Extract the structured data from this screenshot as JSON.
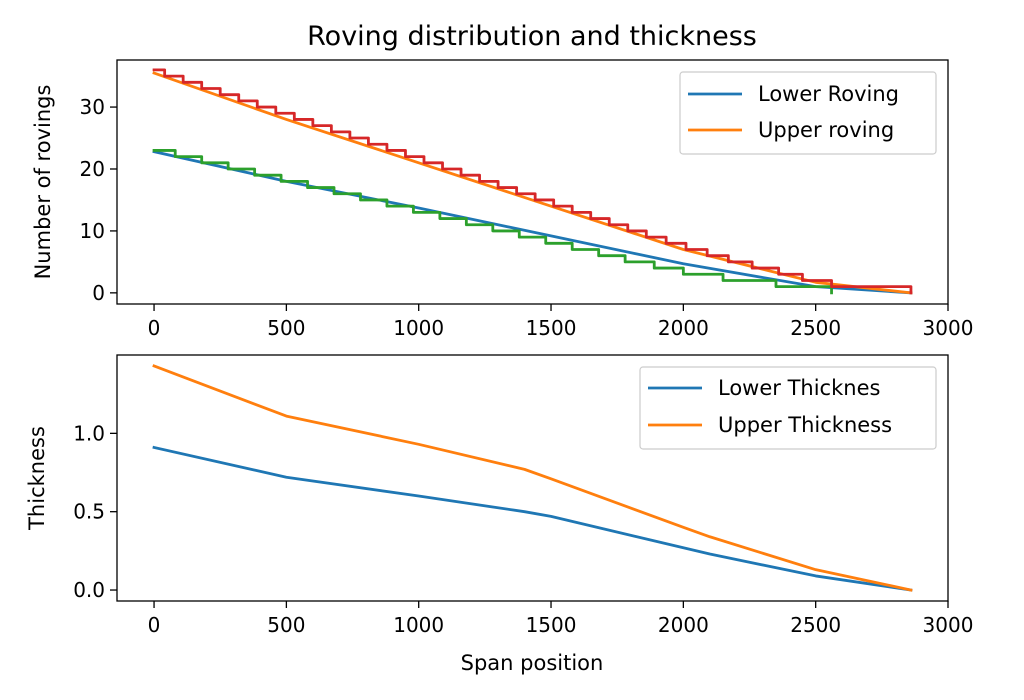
{
  "chart_data": [
    {
      "type": "line",
      "title": "Roving distribution and thickness",
      "xlabel": "",
      "ylabel": "Number of rovings",
      "xlim": [
        -140,
        3000
      ],
      "ylim": [
        -1.8,
        37.6
      ],
      "xticks": [
        0,
        500,
        1000,
        1500,
        2000,
        2500,
        3000
      ],
      "yticks": [
        0,
        10,
        20,
        30
      ],
      "legend": "top-right",
      "series": [
        {
          "name": "Lower Roving",
          "color": "#1f77b4",
          "style": "line",
          "x": [
            0,
            500,
            1000,
            1500,
            2000,
            2500,
            2860
          ],
          "y": [
            22.8,
            18.0,
            13.7,
            9.2,
            4.7,
            1.0,
            0.0
          ]
        },
        {
          "name": "Upper roving",
          "color": "#ff7f0e",
          "style": "line",
          "x": [
            0,
            500,
            1000,
            1500,
            2000,
            2500,
            2860
          ],
          "y": [
            35.5,
            28.0,
            21.0,
            14.0,
            7.0,
            1.7,
            0.0
          ]
        },
        {
          "color": "#2ca02c",
          "style": "step",
          "x": [
            0,
            80,
            180,
            280,
            380,
            480,
            580,
            680,
            780,
            880,
            980,
            1080,
            1180,
            1280,
            1380,
            1480,
            1580,
            1680,
            1780,
            1890,
            2000,
            2150,
            2350,
            2560
          ],
          "y": [
            23,
            22,
            21,
            20,
            19,
            18,
            17,
            16,
            15,
            14,
            13,
            12,
            11,
            10,
            9,
            8,
            7,
            6,
            5,
            4,
            3,
            2,
            1,
            0
          ]
        },
        {
          "color": "#d62728",
          "style": "step",
          "x": [
            0,
            40,
            110,
            180,
            250,
            320,
            390,
            460,
            530,
            600,
            670,
            740,
            810,
            880,
            950,
            1020,
            1090,
            1160,
            1230,
            1300,
            1370,
            1440,
            1510,
            1580,
            1650,
            1720,
            1790,
            1860,
            1935,
            2010,
            2090,
            2170,
            2260,
            2360,
            2450,
            2560,
            2860
          ],
          "y": [
            36,
            35,
            34,
            33,
            32,
            31,
            30,
            29,
            28,
            27,
            26,
            25,
            24,
            23,
            22,
            21,
            20,
            19,
            18,
            17,
            16,
            15,
            14,
            13,
            12,
            11,
            10,
            9,
            8,
            7,
            6,
            5,
            4,
            3,
            2,
            1,
            0
          ]
        }
      ]
    },
    {
      "type": "line",
      "title": "",
      "xlabel": "Span position",
      "ylabel": "Thickness",
      "xlim": [
        -140,
        3000
      ],
      "ylim": [
        -0.07,
        1.5
      ],
      "xticks": [
        0,
        500,
        1000,
        1500,
        2000,
        2500,
        3000
      ],
      "yticks": [
        0.0,
        0.5,
        1.0
      ],
      "ytick_labels": [
        "0.0",
        "0.5",
        "1.0"
      ],
      "legend": "top-right",
      "series": [
        {
          "name": "Lower Thicknes",
          "color": "#1f77b4",
          "style": "line",
          "x": [
            0,
            500,
            1000,
            1400,
            1500,
            2000,
            2100,
            2500,
            2860
          ],
          "y": [
            0.91,
            0.72,
            0.6,
            0.5,
            0.47,
            0.27,
            0.23,
            0.09,
            0.0
          ]
        },
        {
          "name": "Upper Thickness",
          "color": "#ff7f0e",
          "style": "line",
          "x": [
            0,
            500,
            1000,
            1400,
            1500,
            2000,
            2100,
            2500,
            2860
          ],
          "y": [
            1.43,
            1.11,
            0.93,
            0.77,
            0.71,
            0.4,
            0.34,
            0.13,
            0.0
          ]
        }
      ]
    }
  ]
}
